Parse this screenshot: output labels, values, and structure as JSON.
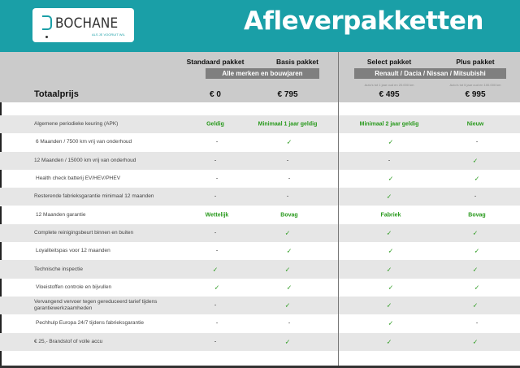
{
  "header": {
    "brand": "BOCHANE",
    "tagline": "ALS JE VOORUIT WIL",
    "title": "Afleverpakketten",
    "color": "#1a9fa7"
  },
  "packages": [
    {
      "name": "Standaard pakket",
      "price": "€ 0",
      "note": ""
    },
    {
      "name": "Basis pakket",
      "price": "€ 795",
      "note": ""
    },
    {
      "name": "Select pakket",
      "price": "€ 495",
      "note": "Auto's tot 1 jaar oud en 20.000 km"
    },
    {
      "name": "Plus pakket",
      "price": "€ 995",
      "note": "Auto's tot 5 jaar oud en 100.000 km"
    }
  ],
  "groups": [
    "Alle merken en bouwjaren",
    "Renault / Dacia / Nissan / Mitsubishi"
  ],
  "total_label": "Totaalprijs",
  "rows": [
    {
      "label": "Algemene periodieke keuring (APK)",
      "values": [
        "Geldig",
        "Minimaal 1 jaar geldig",
        "Minimaal 2 jaar geldig",
        "Nieuw"
      ]
    },
    {
      "label": "6 Maanden / 7500 km vrij van onderhoud",
      "values": [
        "-",
        "✓",
        "✓",
        "-"
      ]
    },
    {
      "label": "12 Maanden / 15000 km vrij van onderhoud",
      "values": [
        "-",
        "-",
        "-",
        "✓"
      ]
    },
    {
      "label": "Health check batterij EV/HEV/PHEV",
      "values": [
        "-",
        "-",
        "✓",
        "✓"
      ]
    },
    {
      "label": "Resterende fabrieksgarantie minimaal 12 maanden",
      "values": [
        "-",
        "-",
        "✓",
        "-"
      ]
    },
    {
      "label": "12 Maanden  garantie",
      "values": [
        "Wettelijk",
        "Bovag",
        "Fabriek",
        "Bovag"
      ]
    },
    {
      "label": "Complete reinigingsbeurt binnen en buiten",
      "values": [
        "-",
        "✓",
        "✓",
        "✓"
      ]
    },
    {
      "label": "Loyaliteitspas voor 12 maanden",
      "values": [
        "-",
        "✓",
        "✓",
        "✓"
      ]
    },
    {
      "label": "Technische inspectie",
      "values": [
        "✓",
        "✓",
        "✓",
        "✓"
      ]
    },
    {
      "label": "Vloeistoffen controle en bijvullen",
      "values": [
        "✓",
        "✓",
        "✓",
        "✓"
      ]
    },
    {
      "label": "Vervangend vervoer tegen gereduceerd tarief tijdens garantiewerkzaamheden",
      "values": [
        "-",
        "✓",
        "✓",
        "✓"
      ]
    },
    {
      "label": "Pechhulp Europa 24/7 tijdens fabrieksgarantie",
      "values": [
        "-",
        "-",
        "✓",
        "-"
      ]
    },
    {
      "label": "€ 25,- Brandstof of  volle accu",
      "values": [
        "-",
        "✓",
        "✓",
        "✓"
      ]
    }
  ]
}
